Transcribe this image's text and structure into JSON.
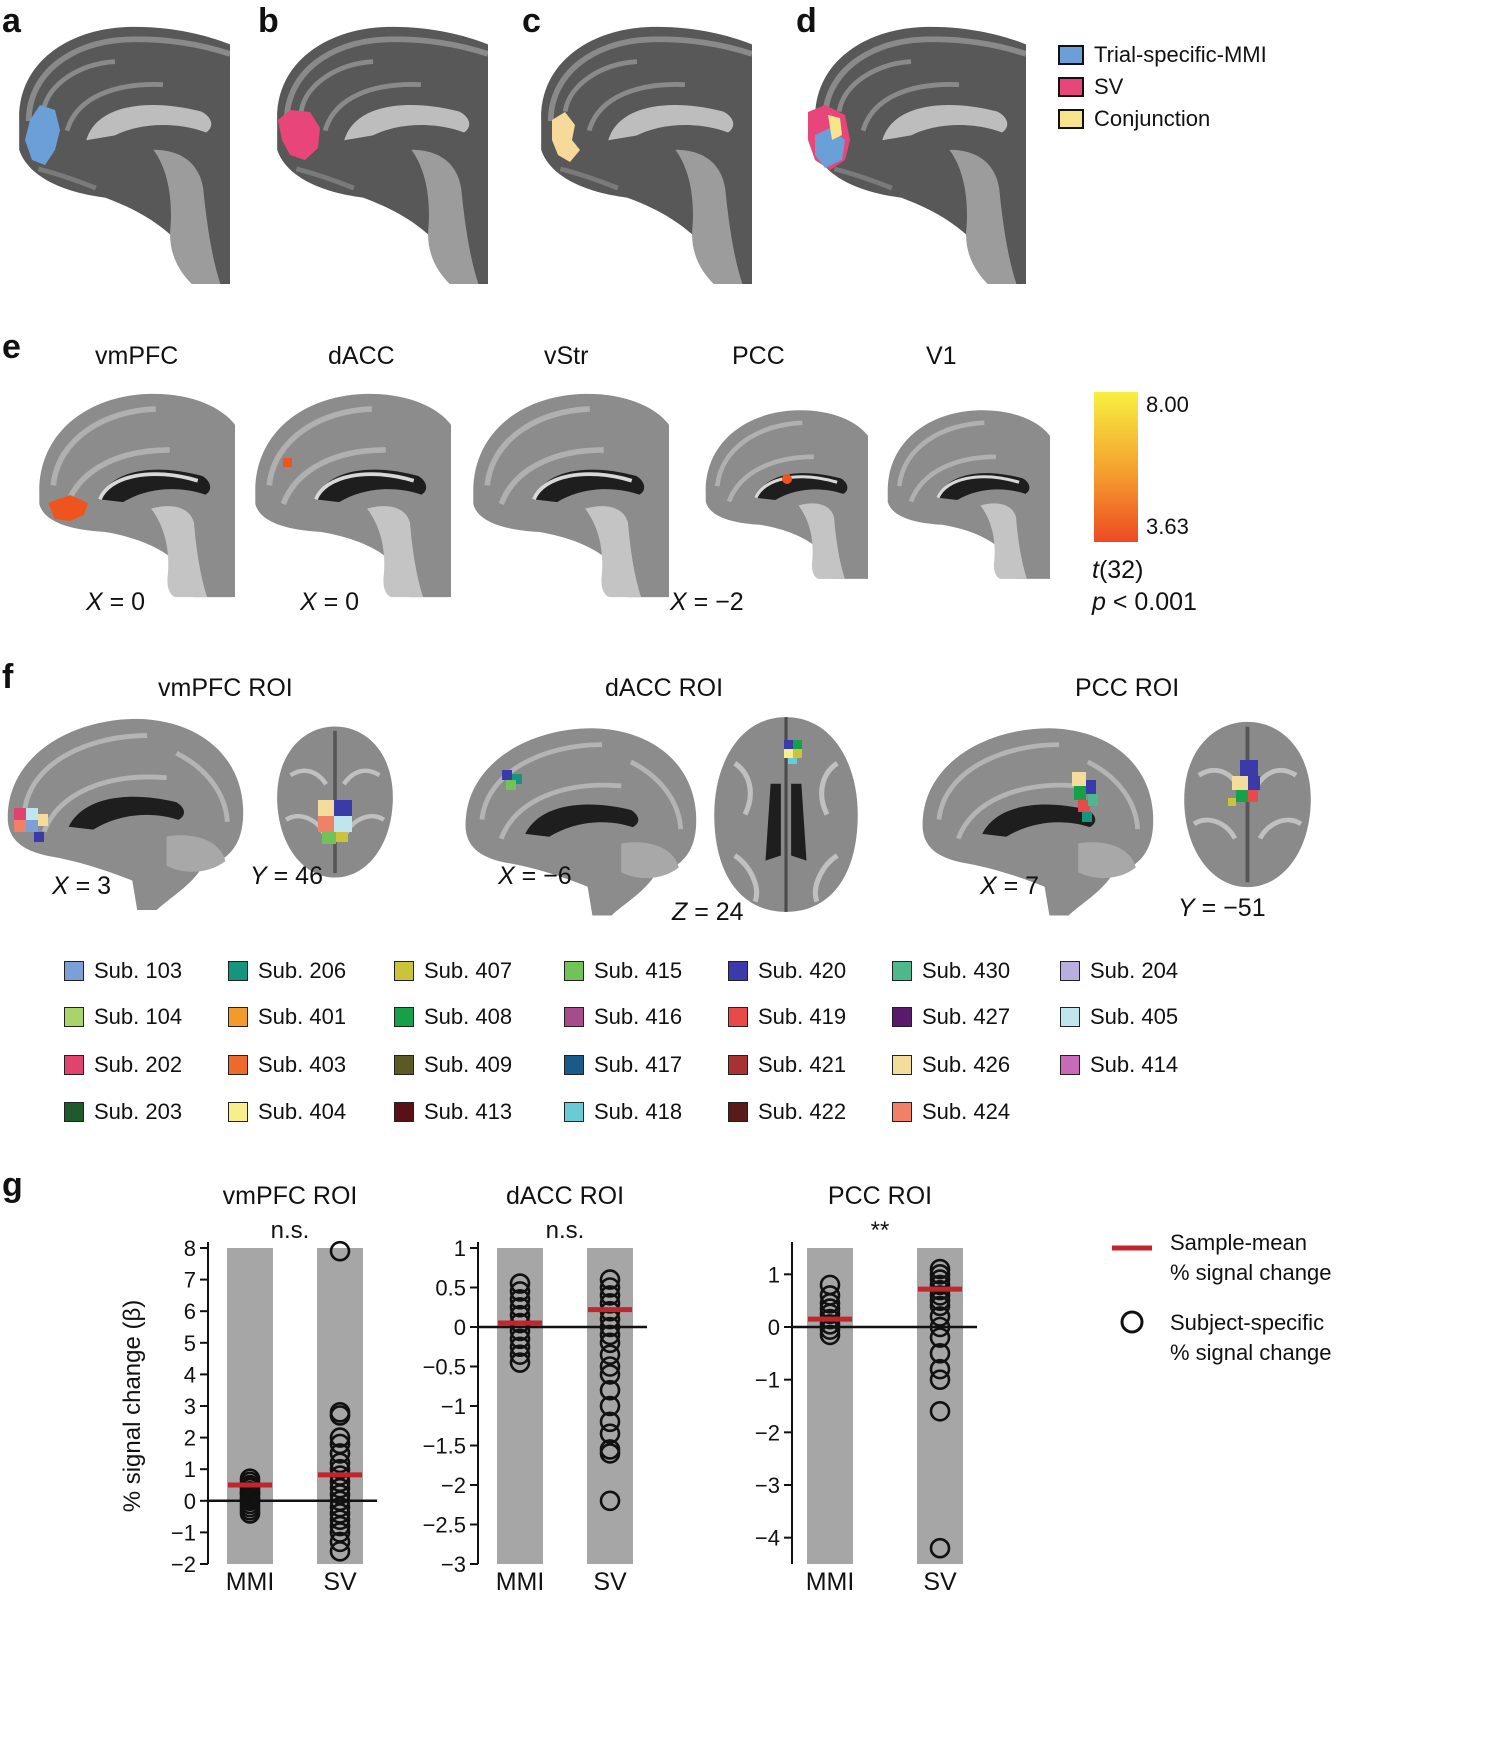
{
  "panel_letters": {
    "a": "a",
    "b": "b",
    "c": "c",
    "d": "d",
    "e": "e",
    "f": "f",
    "g": "g"
  },
  "top_legend": [
    {
      "label": "Trial-specific-MMI",
      "color": "#6a9fd8"
    },
    {
      "label": "SV",
      "color": "#e8457a"
    },
    {
      "label": "Conjunction",
      "color": "#f7e48c"
    }
  ],
  "panel_e": {
    "regions": [
      "vmPFC",
      "dACC",
      "vStr",
      "PCC",
      "V1"
    ],
    "coords": [
      {
        "axis": "X",
        "value": "= 0"
      },
      {
        "axis": "X",
        "value": "= 0"
      },
      {
        "axis": "X",
        "value": "= −2"
      }
    ],
    "colorbar": {
      "max": "8.00",
      "min": "3.63",
      "stat": "t",
      "df": "(32)",
      "p_label": "p",
      "p_value": "< 0.001"
    }
  },
  "panel_f": {
    "rois": [
      "vmPFC ROI",
      "dACC ROI",
      "PCC ROI"
    ],
    "coords": [
      {
        "axis": "X",
        "value": "= 3"
      },
      {
        "axis": "Y",
        "value": "= 46"
      },
      {
        "axis": "X",
        "value": "= −6"
      },
      {
        "axis": "Z",
        "value": "= 24"
      },
      {
        "axis": "X",
        "value": "= 7"
      },
      {
        "axis": "Y",
        "value": "= −51"
      }
    ]
  },
  "subjects": [
    {
      "label": "Sub. 103",
      "color": "#7b9fd6"
    },
    {
      "label": "Sub. 206",
      "color": "#17947e"
    },
    {
      "label": "Sub. 407",
      "color": "#c9c43a"
    },
    {
      "label": "Sub. 415",
      "color": "#72c25a"
    },
    {
      "label": "Sub. 420",
      "color": "#3a3aa8"
    },
    {
      "label": "Sub. 430",
      "color": "#4cb88c"
    },
    {
      "label": "Sub. 204",
      "color": "#b8aee0"
    },
    {
      "label": "Sub. 104",
      "color": "#a9d46a"
    },
    {
      "label": "Sub. 401",
      "color": "#f29a2a"
    },
    {
      "label": "Sub. 408",
      "color": "#17a04a"
    },
    {
      "label": "Sub. 416",
      "color": "#a64c8c"
    },
    {
      "label": "Sub. 419",
      "color": "#e84a4a"
    },
    {
      "label": "Sub. 427",
      "color": "#5a1a6a"
    },
    {
      "label": "Sub. 405",
      "color": "#bfe6ef"
    },
    {
      "label": "Sub. 202",
      "color": "#e0446e"
    },
    {
      "label": "Sub. 403",
      "color": "#ee6a2c"
    },
    {
      "label": "Sub. 409",
      "color": "#5c5a24"
    },
    {
      "label": "Sub. 417",
      "color": "#1a5a8a"
    },
    {
      "label": "Sub. 421",
      "color": "#a83232"
    },
    {
      "label": "Sub. 426",
      "color": "#f4dc9c"
    },
    {
      "label": "Sub. 414",
      "color": "#c86ab8"
    },
    {
      "label": "Sub. 203",
      "color": "#1e5a2a"
    },
    {
      "label": "Sub. 404",
      "color": "#f8ef8c"
    },
    {
      "label": "Sub. 413",
      "color": "#5a1014"
    },
    {
      "label": "Sub. 418",
      "color": "#6acbd6"
    },
    {
      "label": "Sub. 422",
      "color": "#5a1a1a"
    },
    {
      "label": "Sub. 424",
      "color": "#f08068"
    }
  ],
  "chart_data": [
    {
      "type": "scatter",
      "title": "vmPFC ROI",
      "significance": "n.s.",
      "ylabel": "% signal change (β)",
      "ylim": [
        -2,
        8
      ],
      "yticks": [
        "8",
        "7",
        "6",
        "5",
        "4",
        "3",
        "2",
        "1",
        "0",
        "−1",
        "−2"
      ],
      "categories": [
        "MMI",
        "SV"
      ],
      "means": [
        0.5,
        0.82
      ],
      "points": [
        [
          0.7,
          0.6,
          0.5,
          0.45,
          0.4,
          0.3,
          0.25,
          0.2,
          0.1,
          0.05,
          0.0,
          -0.1,
          -0.2,
          -0.3,
          -0.4
        ],
        [
          7.9,
          2.8,
          2.7,
          2.0,
          1.8,
          1.5,
          1.2,
          1.0,
          0.8,
          0.6,
          0.4,
          0.2,
          0.0,
          -0.2,
          -0.4,
          -0.6,
          -0.8,
          -1.0,
          -1.3,
          -1.6
        ]
      ]
    },
    {
      "type": "scatter",
      "title": "dACC ROI",
      "significance": "n.s.",
      "ylabel": "",
      "ylim": [
        -3,
        1
      ],
      "yticks": [
        "1",
        "0.5",
        "0",
        "−0.5",
        "−1",
        "−1.5",
        "−2",
        "−2.5",
        "−3"
      ],
      "categories": [
        "MMI",
        "SV"
      ],
      "means": [
        0.05,
        0.22
      ],
      "points": [
        [
          0.55,
          0.45,
          0.35,
          0.25,
          0.15,
          0.05,
          -0.05,
          -0.15,
          -0.25,
          -0.35,
          -0.45
        ],
        [
          0.6,
          0.5,
          0.4,
          0.3,
          0.2,
          0.1,
          0.0,
          -0.1,
          -0.2,
          -0.35,
          -0.5,
          -0.6,
          -0.8,
          -1.0,
          -1.2,
          -1.35,
          -1.55,
          -1.6,
          -2.2
        ]
      ]
    },
    {
      "type": "scatter",
      "title": "PCC ROI",
      "significance": "**",
      "ylabel": "",
      "ylim": [
        -4.5,
        1.5
      ],
      "yticks": [
        "1",
        "0",
        "−1",
        "−2",
        "−3",
        "−4"
      ],
      "categories": [
        "MMI",
        "SV"
      ],
      "means": [
        0.15,
        0.72
      ],
      "points": [
        [
          0.8,
          0.6,
          0.45,
          0.35,
          0.25,
          0.15,
          0.05,
          -0.05,
          -0.15
        ],
        [
          1.1,
          1.0,
          0.9,
          0.8,
          0.7,
          0.6,
          0.5,
          0.4,
          0.2,
          0.0,
          -0.2,
          -0.5,
          -0.8,
          -1.0,
          -1.6,
          -4.2
        ]
      ]
    }
  ],
  "g_legend": {
    "mean_line1": "Sample-mean",
    "mean_line2": "% signal change",
    "subj_line1": "Subject-specific",
    "subj_line2": "% signal change"
  }
}
